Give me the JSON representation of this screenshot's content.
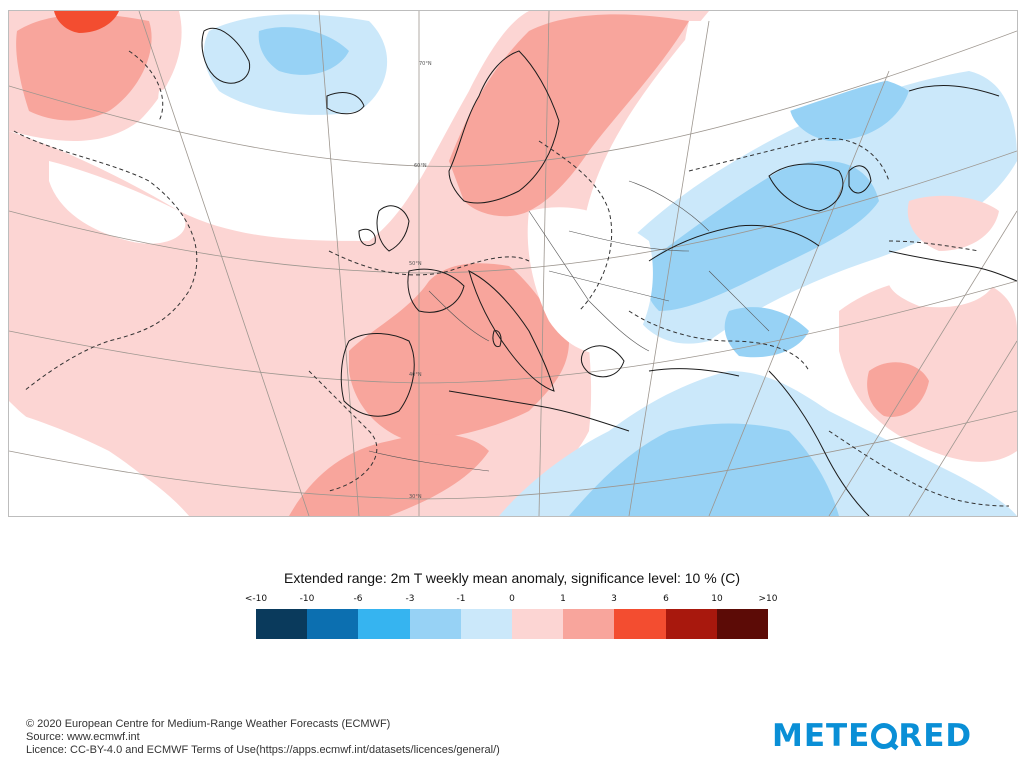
{
  "map": {
    "grid_labels": [
      "70°N",
      "60°N",
      "50°N",
      "40°N",
      "30°N"
    ]
  },
  "legend": {
    "title": "Extended range: 2m T weekly mean anomaly, significance level: 10 % (C)",
    "ticks": [
      "<-10",
      "-10",
      "-6",
      "-3",
      "-1",
      "0",
      "1",
      "3",
      "6",
      "10",
      ">10"
    ],
    "colors": [
      "#0a3a5c",
      "#0c6fb0",
      "#36b4f0",
      "#97d2f5",
      "#cbe8fa",
      "#fcd5d3",
      "#f8a59c",
      "#f34d30",
      "#a8180d",
      "#5c0b06"
    ]
  },
  "credits": {
    "line1": "© 2020 European Centre for Medium-Range Weather Forecasts (ECMWF)",
    "line2": "Source: www.ecmwf.int",
    "line3": "Licence: CC-BY-4.0 and ECMWF Terms of Use(https://apps.ecmwf.int/datasets/licences/general/)"
  },
  "logo": {
    "text_before": "METE",
    "text_after": "RED",
    "color": "#0a8fd6"
  }
}
